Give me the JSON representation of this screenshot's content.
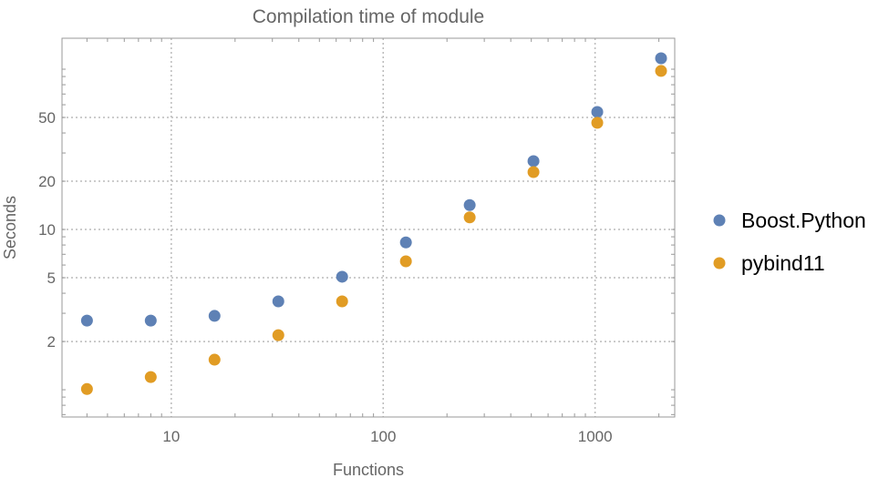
{
  "chart_data": {
    "type": "scatter",
    "title": "Compilation time of module",
    "xlabel": "Functions",
    "ylabel": "Seconds",
    "xscale": "log",
    "yscale": "log",
    "xlim": [
      3.05,
      2376
    ],
    "ylim": [
      0.676,
      156
    ],
    "grid": true,
    "legend_position": "right",
    "xticks": [
      10,
      100,
      1000
    ],
    "xtick_labels": [
      "10",
      "100",
      "1000"
    ],
    "yticks": [
      2,
      5,
      10,
      20,
      50
    ],
    "ytick_labels": [
      "2",
      "5",
      "10",
      "20",
      "50"
    ],
    "x": [
      4,
      8,
      16,
      32,
      64,
      128,
      256,
      512,
      1024,
      2048
    ],
    "series": [
      {
        "name": "Boost.Python",
        "color": "#5e81b5",
        "values": [
          2.7,
          2.7,
          2.89,
          3.56,
          5.07,
          8.3,
          14.2,
          26.7,
          54.1,
          117
        ]
      },
      {
        "name": "pybind11",
        "color": "#e19c24",
        "values": [
          1.01,
          1.2,
          1.54,
          2.19,
          3.56,
          6.33,
          11.9,
          22.8,
          46.3,
          97.5
        ]
      }
    ]
  }
}
